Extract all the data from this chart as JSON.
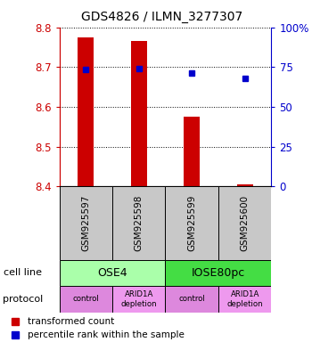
{
  "title": "GDS4826 / ILMN_3277307",
  "samples": [
    "GSM925597",
    "GSM925598",
    "GSM925599",
    "GSM925600"
  ],
  "bar_bottoms": [
    8.4,
    8.4,
    8.4,
    8.4
  ],
  "bar_tops": [
    8.775,
    8.765,
    8.575,
    8.405
  ],
  "bar_color": "#cc0000",
  "dot_values": [
    8.695,
    8.697,
    8.685,
    8.672
  ],
  "dot_color": "#0000cc",
  "ylim": [
    8.4,
    8.8
  ],
  "yticks_left": [
    8.4,
    8.5,
    8.6,
    8.7,
    8.8
  ],
  "yticks_right": [
    0,
    25,
    50,
    75,
    100
  ],
  "ytick_labels_right": [
    "0",
    "25",
    "50",
    "75",
    "100%"
  ],
  "cell_line_groups": [
    {
      "label": "OSE4",
      "color": "#aaffaa",
      "span": [
        0,
        2
      ]
    },
    {
      "label": "IOSE80pc",
      "color": "#44dd44",
      "span": [
        2,
        4
      ]
    }
  ],
  "protocol_colors": [
    "#dd88dd",
    "#dd88dd",
    "#dd88dd",
    "#dd88dd"
  ],
  "protocols": [
    "control",
    "ARID1A\ndepletion",
    "control",
    "ARID1A\ndepletion"
  ],
  "protocol_label": "protocol",
  "cell_line_label": "cell line",
  "legend_red_label": "transformed count",
  "legend_blue_label": "percentile rank within the sample",
  "left_tick_color": "#cc0000",
  "right_tick_color": "#0000cc",
  "sample_box_color": "#c8c8c8",
  "bar_width": 0.3
}
